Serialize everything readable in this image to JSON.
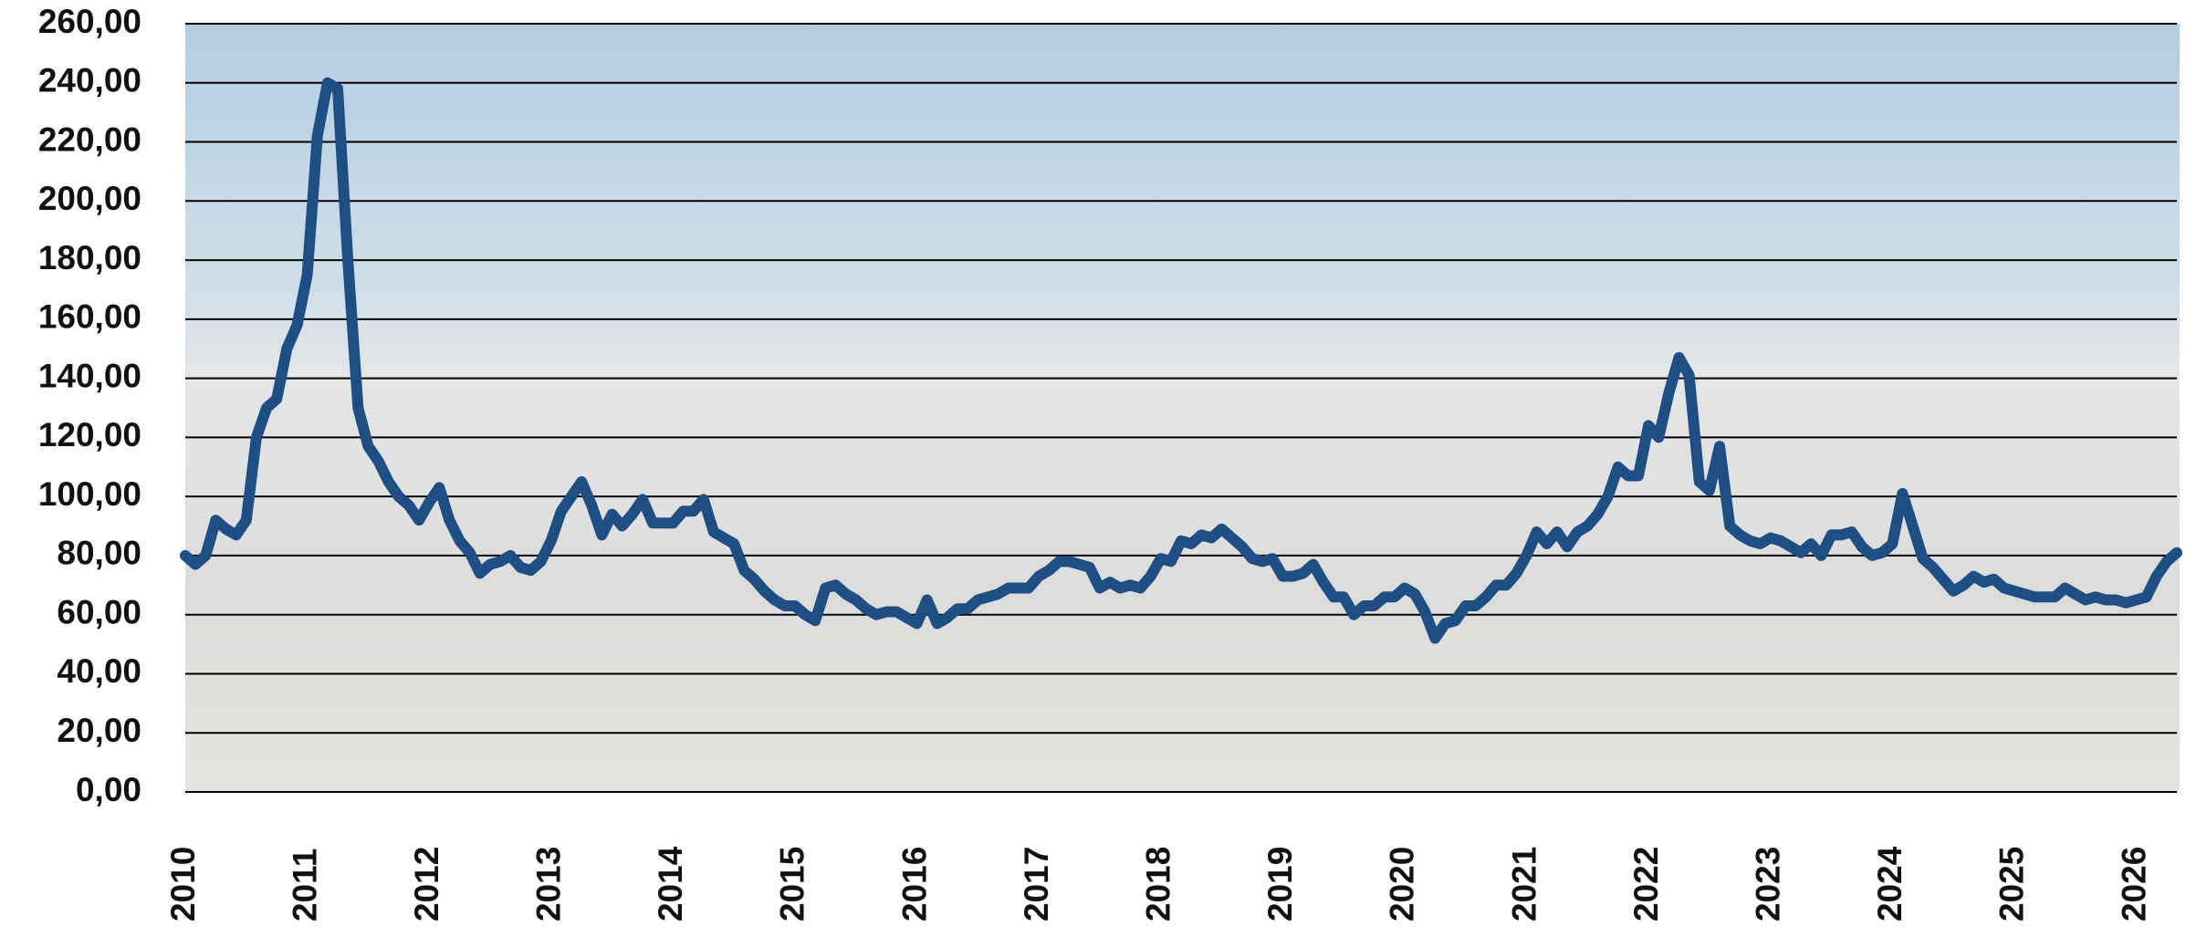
{
  "chart_data": {
    "type": "line",
    "categories": [
      "2010",
      null,
      null,
      null,
      null,
      null,
      null,
      null,
      null,
      null,
      null,
      null,
      "2011",
      null,
      null,
      null,
      null,
      null,
      null,
      null,
      null,
      null,
      null,
      null,
      "2012",
      null,
      null,
      null,
      null,
      null,
      null,
      null,
      null,
      null,
      null,
      null,
      "2013",
      null,
      null,
      null,
      null,
      null,
      null,
      null,
      null,
      null,
      null,
      null,
      "2014",
      null,
      null,
      null,
      null,
      null,
      null,
      null,
      null,
      null,
      null,
      null,
      "2015",
      null,
      null,
      null,
      null,
      null,
      null,
      null,
      null,
      null,
      null,
      null,
      "2016",
      null,
      null,
      null,
      null,
      null,
      null,
      null,
      null,
      null,
      null,
      null,
      "2017",
      null,
      null,
      null,
      null,
      null,
      null,
      null,
      null,
      null,
      null,
      null,
      "2018",
      null,
      null,
      null,
      null,
      null,
      null,
      null,
      null,
      null,
      null,
      null,
      "2019",
      null,
      null,
      null,
      null,
      null,
      null,
      null,
      null,
      null,
      null,
      null,
      "2020",
      null,
      null,
      null,
      null,
      null,
      null,
      null,
      null,
      null,
      null,
      null,
      "2021",
      null,
      null,
      null,
      null,
      null,
      null,
      null,
      null,
      null,
      null,
      null,
      "2022",
      null,
      null,
      null,
      null,
      null,
      null,
      null,
      null,
      null,
      null,
      null,
      "2023",
      null,
      null,
      null,
      null,
      null,
      null,
      null,
      null,
      null,
      null,
      null,
      "2024",
      null,
      null,
      null,
      null,
      null,
      null,
      null,
      null,
      null,
      null,
      null,
      "2025",
      null,
      null,
      null,
      null,
      null,
      null,
      null,
      null,
      null,
      null,
      null,
      "2026",
      null,
      null,
      null,
      null
    ],
    "values": [
      80,
      77,
      80,
      92,
      89,
      87,
      92,
      120,
      130,
      133,
      150,
      158,
      175,
      222,
      240,
      238,
      180,
      130,
      117,
      112,
      105,
      100,
      97,
      92,
      98,
      103,
      92,
      85,
      81,
      74,
      77,
      78,
      80,
      76,
      75,
      78,
      85,
      95,
      100,
      105,
      97,
      87,
      94,
      90,
      94,
      99,
      91,
      91,
      91,
      95,
      95,
      99,
      88,
      86,
      84,
      75,
      72,
      68,
      65,
      63,
      63,
      60,
      58,
      69,
      70,
      67,
      65,
      62,
      60,
      61,
      61,
      59,
      57,
      65,
      57,
      59,
      62,
      62,
      65,
      66,
      67,
      69,
      69,
      69,
      73,
      75,
      78,
      78,
      77,
      76,
      69,
      71,
      69,
      70,
      69,
      73,
      79,
      78,
      85,
      84,
      87,
      86,
      89,
      86,
      83,
      79,
      78,
      79,
      73,
      73,
      74,
      77,
      71,
      66,
      66,
      60,
      63,
      63,
      66,
      66,
      69,
      67,
      61,
      52,
      57,
      58,
      63,
      63,
      66,
      70,
      70,
      74,
      80,
      88,
      84,
      88,
      83,
      88,
      90,
      94,
      100,
      110,
      107,
      107,
      124,
      120,
      135,
      147,
      141,
      105,
      102,
      117,
      90,
      87,
      85,
      84,
      86,
      85,
      83,
      81,
      84,
      80,
      87,
      87,
      88,
      83,
      80,
      81,
      84,
      101,
      90,
      79,
      76,
      72,
      68,
      70,
      73,
      71,
      72,
      69,
      68,
      67,
      66,
      66,
      66,
      69,
      67,
      65,
      66,
      65,
      65,
      64,
      65,
      66,
      73,
      78,
      81
    ],
    "color": "#1f4e85",
    "ylim": [
      0,
      260
    ],
    "yticks": [
      {
        "value": 0,
        "label": "0,00"
      },
      {
        "value": 20,
        "label": "20,00"
      },
      {
        "value": 40,
        "label": "40,00"
      },
      {
        "value": 60,
        "label": "60,00"
      },
      {
        "value": 80,
        "label": "80,00"
      },
      {
        "value": 100,
        "label": "100,00"
      },
      {
        "value": 120,
        "label": "120,00"
      },
      {
        "value": 140,
        "label": "140,00"
      },
      {
        "value": 160,
        "label": "160,00"
      },
      {
        "value": 180,
        "label": "180,00"
      },
      {
        "value": 200,
        "label": "200,00"
      },
      {
        "value": 220,
        "label": "220,00"
      },
      {
        "value": 240,
        "label": "240,00"
      },
      {
        "value": 260,
        "label": "260,00"
      }
    ],
    "grid": true
  }
}
